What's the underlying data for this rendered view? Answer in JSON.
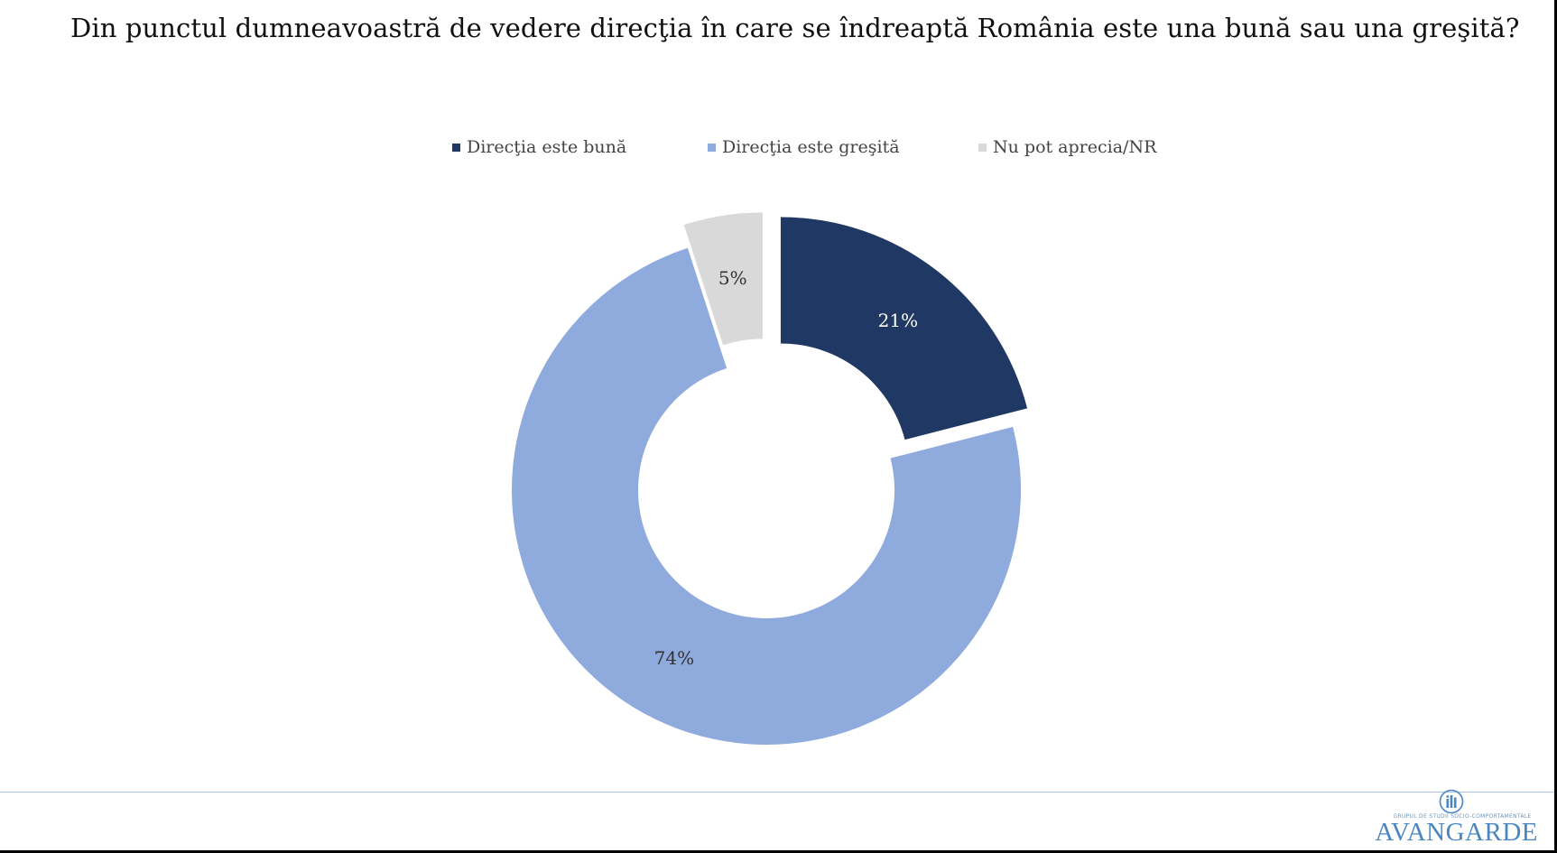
{
  "slide": {
    "title": "Din punctul dumneavoastră de vedere direcţia în care se îndreaptă România este una bună sau una greşită?"
  },
  "chart_data": {
    "type": "pie",
    "title": "Din punctul dumneavoastră de vedere direcţia în care se îndreaptă România este una bună sau una greşită?",
    "donut": true,
    "legend_position": "top",
    "categories": [
      "Direcţia este bună",
      "Direcţia este greşită",
      "Nu pot aprecia/NR"
    ],
    "values": [
      21,
      74,
      5
    ],
    "labels": [
      "21%",
      "74%",
      "5%"
    ],
    "colors": [
      "#1f3864",
      "#8faadc",
      "#d9d9d9"
    ],
    "label_colors": [
      "#ffffff",
      "#333333",
      "#333333"
    ]
  },
  "logo": {
    "subtitle": "GRUPUL DE STUDII SOCIO-COMPORTAMENTALE",
    "wordmark": "AVANGARDE",
    "color": "#4a86c2"
  }
}
